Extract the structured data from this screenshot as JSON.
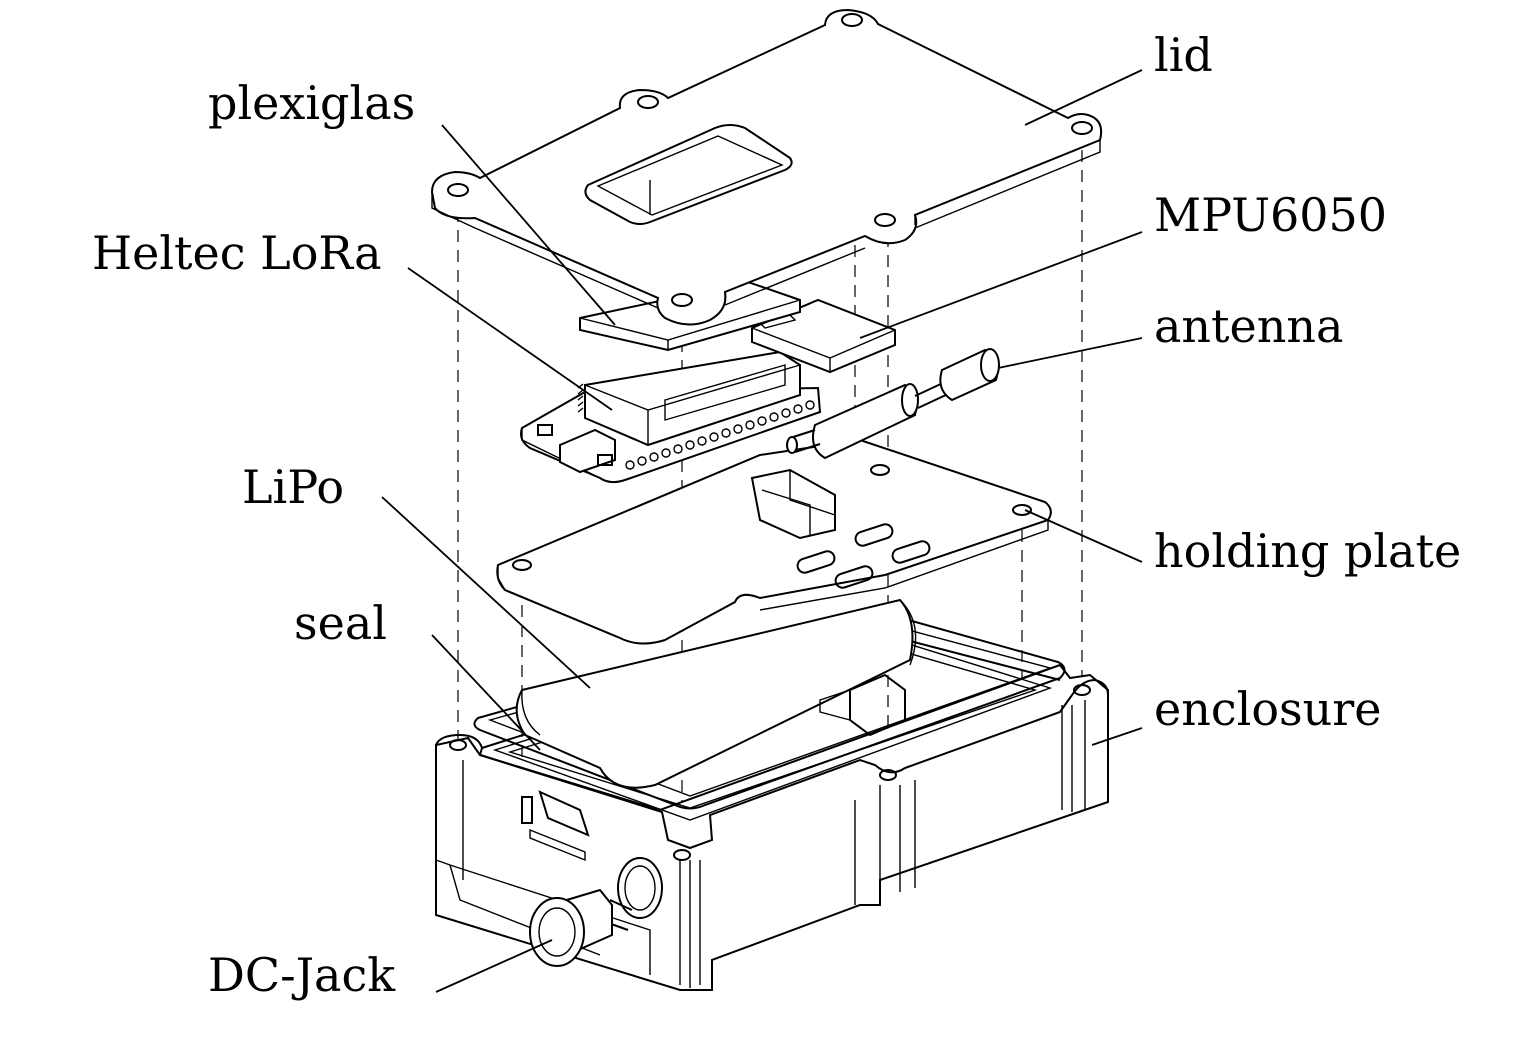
{
  "labels": {
    "lid": "lid",
    "plexiglas": "plexiglas",
    "mpu6050": "MPU6050",
    "heltec_lora": "Heltec LoRa",
    "antenna": "antenna",
    "lipo": "LiPo",
    "holding_plate": "holding plate",
    "seal": "seal",
    "enclosure": "enclosure",
    "dc_jack": "DC-Jack"
  }
}
